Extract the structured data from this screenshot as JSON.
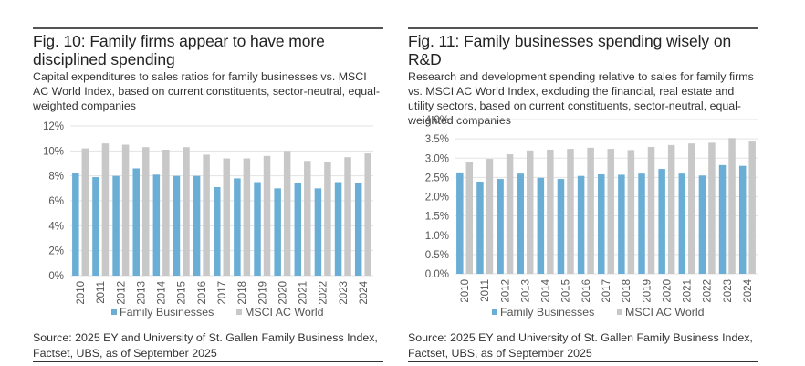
{
  "colors": {
    "family": "#6aaed6",
    "msci": "#c8c8c8",
    "grid": "#e3e3e3",
    "rule": "#555555"
  },
  "chart_data": [
    {
      "type": "bar",
      "title": "Fig. 10: Family firms appear to have more disciplined spending",
      "subtitle": "Capital expenditures to sales ratios for family businesses vs. MSCI AC World Index, based on current constituents, sector-neutral, equal-weighted companies",
      "xlabel": "",
      "ylabel": "",
      "categories": [
        "2010",
        "2011",
        "2012",
        "2013",
        "2014",
        "2015",
        "2016",
        "2017",
        "2018",
        "2019",
        "2020",
        "2021",
        "2022",
        "2023",
        "2024"
      ],
      "series": [
        {
          "name": "Family Businesses",
          "values": [
            8.2,
            7.9,
            8.0,
            8.6,
            8.1,
            8.0,
            8.0,
            7.1,
            7.8,
            7.5,
            7.0,
            7.4,
            7.0,
            7.5,
            7.4
          ]
        },
        {
          "name": "MSCI AC World",
          "values": [
            10.2,
            10.6,
            10.5,
            10.3,
            10.1,
            10.3,
            9.7,
            9.4,
            9.4,
            9.6,
            10.0,
            9.2,
            9.1,
            9.5,
            9.8
          ]
        }
      ],
      "ylim": [
        0,
        12
      ],
      "yticks": [
        0,
        2,
        4,
        6,
        8,
        10,
        12
      ],
      "ytick_labels": [
        "0%",
        "2%",
        "4%",
        "6%",
        "8%",
        "10%",
        "12%"
      ],
      "grid": true,
      "legend_position": "bottom",
      "source": "Source: 2025 EY and University of St. Gallen Family Business Index, Factset, UBS, as of September 2025"
    },
    {
      "type": "bar",
      "title": "Fig. 11: Family businesses spending wisely on R&D",
      "subtitle": "Research and development spending relative to sales for family firms vs. MSCI AC World Index, excluding the financial, real estate and utility sectors, based on current constituents, sector-neutral, equal-weighted companies",
      "xlabel": "",
      "ylabel": "",
      "categories": [
        "2010",
        "2011",
        "2012",
        "2013",
        "2014",
        "2015",
        "2016",
        "2017",
        "2018",
        "2019",
        "2020",
        "2021",
        "2022",
        "2023",
        "2024"
      ],
      "series": [
        {
          "name": "Family Businesses",
          "values": [
            2.63,
            2.39,
            2.46,
            2.6,
            2.49,
            2.46,
            2.54,
            2.58,
            2.57,
            2.6,
            2.72,
            2.6,
            2.55,
            2.82,
            2.8
          ]
        },
        {
          "name": "MSCI AC World",
          "values": [
            2.91,
            2.98,
            3.1,
            3.2,
            3.22,
            3.24,
            3.27,
            3.24,
            3.21,
            3.29,
            3.34,
            3.38,
            3.4,
            3.52,
            3.43
          ]
        }
      ],
      "ylim": [
        0,
        4
      ],
      "yticks": [
        0,
        0.5,
        1,
        1.5,
        2,
        2.5,
        3,
        3.5,
        4
      ],
      "ytick_labels": [
        "0.0%",
        "0.5%",
        "1.0%",
        "1.5%",
        "2.0%",
        "2.5%",
        "3.0%",
        "3.5%",
        "4.0%"
      ],
      "grid": true,
      "legend_position": "bottom",
      "source": "Source: 2025 EY and University of St. Gallen Family Business Index, Factset, UBS, as of September 2025"
    }
  ]
}
